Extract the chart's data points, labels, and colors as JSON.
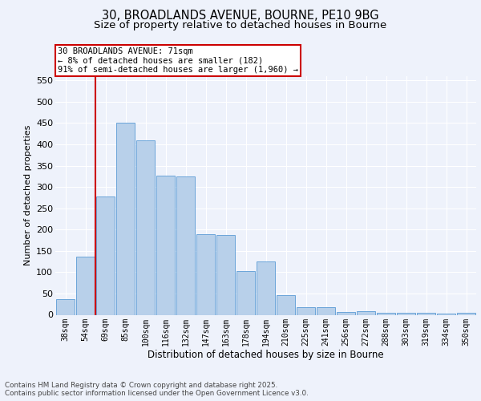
{
  "title_line1": "30, BROADLANDS AVENUE, BOURNE, PE10 9BG",
  "title_line2": "Size of property relative to detached houses in Bourne",
  "xlabel": "Distribution of detached houses by size in Bourne",
  "ylabel": "Number of detached properties",
  "categories": [
    "38sqm",
    "54sqm",
    "69sqm",
    "85sqm",
    "100sqm",
    "116sqm",
    "132sqm",
    "147sqm",
    "163sqm",
    "178sqm",
    "194sqm",
    "210sqm",
    "225sqm",
    "241sqm",
    "256sqm",
    "272sqm",
    "288sqm",
    "303sqm",
    "319sqm",
    "334sqm",
    "350sqm"
  ],
  "values": [
    37,
    137,
    277,
    450,
    410,
    327,
    325,
    190,
    188,
    103,
    125,
    46,
    18,
    17,
    6,
    8,
    5,
    4,
    5,
    2,
    5
  ],
  "bar_color": "#b8d0ea",
  "bar_edge_color": "#5b9bd5",
  "annotation_line1": "30 BROADLANDS AVENUE: 71sqm",
  "annotation_line2": "← 8% of detached houses are smaller (182)",
  "annotation_line3": "91% of semi-detached houses are larger (1,960) →",
  "vline_index": 1.5,
  "annotation_box_color": "#ffffff",
  "annotation_box_edge": "#cc0000",
  "footnote": "Contains HM Land Registry data © Crown copyright and database right 2025.\nContains public sector information licensed under the Open Government Licence v3.0.",
  "background_color": "#eef2fb",
  "ylim": [
    0,
    560
  ],
  "yticks": [
    0,
    50,
    100,
    150,
    200,
    250,
    300,
    350,
    400,
    450,
    500,
    550
  ],
  "grid_color": "#ffffff",
  "title_fontsize": 10.5,
  "subtitle_fontsize": 9.5
}
